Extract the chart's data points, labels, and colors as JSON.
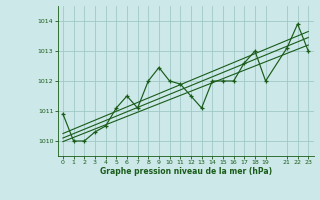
{
  "title": "Graphe pression niveau de la mer (hPa)",
  "bg_color": "#cce8e8",
  "grid_color": "#a0c8c8",
  "line_color": "#1a5c1a",
  "xlim": [
    -0.5,
    23.5
  ],
  "ylim": [
    1009.5,
    1014.5
  ],
  "yticks": [
    1010,
    1011,
    1012,
    1013,
    1014
  ],
  "xticks": [
    0,
    1,
    2,
    3,
    4,
    5,
    6,
    7,
    8,
    9,
    10,
    11,
    12,
    13,
    14,
    15,
    16,
    17,
    18,
    19,
    21,
    22,
    23
  ],
  "main_data": [
    [
      0,
      1010.9
    ],
    [
      1,
      1010.0
    ],
    [
      2,
      1010.0
    ],
    [
      3,
      1010.3
    ],
    [
      4,
      1010.5
    ],
    [
      5,
      1011.1
    ],
    [
      6,
      1011.5
    ],
    [
      7,
      1011.1
    ],
    [
      8,
      1012.0
    ],
    [
      9,
      1012.45
    ],
    [
      10,
      1012.0
    ],
    [
      11,
      1011.9
    ],
    [
      12,
      1011.5
    ],
    [
      13,
      1011.1
    ],
    [
      14,
      1012.0
    ],
    [
      15,
      1012.0
    ],
    [
      16,
      1012.0
    ],
    [
      17,
      1012.6
    ],
    [
      18,
      1013.0
    ],
    [
      19,
      1012.0
    ],
    [
      21,
      1013.1
    ],
    [
      22,
      1013.9
    ],
    [
      23,
      1013.0
    ]
  ],
  "trend_line": [
    [
      0,
      1010.1
    ],
    [
      23,
      1013.45
    ]
  ],
  "trend_line2": [
    [
      0,
      1010.25
    ],
    [
      23,
      1013.65
    ]
  ],
  "trend_line3": [
    [
      0,
      1009.98
    ],
    [
      23,
      1013.2
    ]
  ]
}
